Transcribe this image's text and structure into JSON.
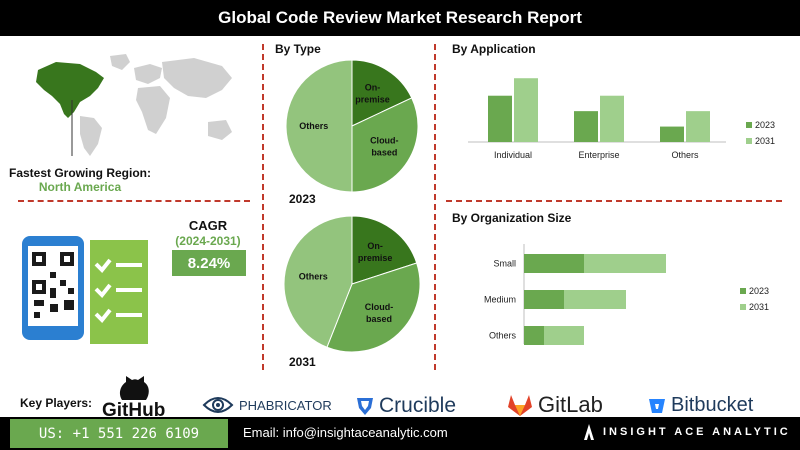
{
  "header": {
    "title": "Global Code Review Market Research Report"
  },
  "region": {
    "label": "Fastest Growing Region:",
    "value": "North America"
  },
  "cagr": {
    "title": "CAGR",
    "period": "(2024-2031)",
    "value": "8.24%"
  },
  "colors": {
    "dark_green": "#6aa84f",
    "light_green": "#9fcf8c",
    "red_dash": "#c0392b"
  },
  "chart_data": [
    {
      "type": "pie",
      "title": "By Type",
      "label": "2023",
      "slices": [
        {
          "name": "On-premise",
          "value": 18
        },
        {
          "name": "Cloud-based",
          "value": 32
        },
        {
          "name": "Others",
          "value": 50
        }
      ]
    },
    {
      "type": "pie",
      "label": "2031",
      "slices": [
        {
          "name": "On-premise",
          "value": 20
        },
        {
          "name": "Cloud-based",
          "value": 36
        },
        {
          "name": "Others",
          "value": 44
        }
      ]
    },
    {
      "type": "bar",
      "title": "By Application",
      "categories": [
        "Individual",
        "Enterprise",
        "Others"
      ],
      "series": [
        {
          "name": "2023",
          "values": [
            45,
            30,
            15
          ]
        },
        {
          "name": "2031",
          "values": [
            62,
            45,
            30
          ]
        }
      ],
      "ylim": [
        0,
        70
      ],
      "legend": "right"
    },
    {
      "type": "bar",
      "orientation": "horizontal",
      "stacked": true,
      "title": "By Organization Size",
      "categories": [
        "Small",
        "Medium",
        "Others"
      ],
      "series": [
        {
          "name": "2023",
          "values": [
            30,
            20,
            10
          ]
        },
        {
          "name": "2031",
          "values": [
            41,
            31,
            20
          ]
        }
      ],
      "xlim": [
        0,
        80
      ],
      "legend": "right"
    }
  ],
  "players": {
    "label": "Key Players:",
    "logos": [
      {
        "name": "GitHub",
        "icon": "github-octocat-icon"
      },
      {
        "name": "PHABRICATOR",
        "icon": "eye-icon"
      },
      {
        "name": "Crucible",
        "icon": "crucible-shield-icon"
      },
      {
        "name": "GitLab",
        "icon": "fox-icon"
      },
      {
        "name": "Bitbucket",
        "icon": "bucket-icon"
      }
    ]
  },
  "footer": {
    "phone": "US: +1 551 226 6109",
    "email": "Email: info@insightaceanalytic.com",
    "brand": "INSIGHT ACE ANALYTIC"
  }
}
